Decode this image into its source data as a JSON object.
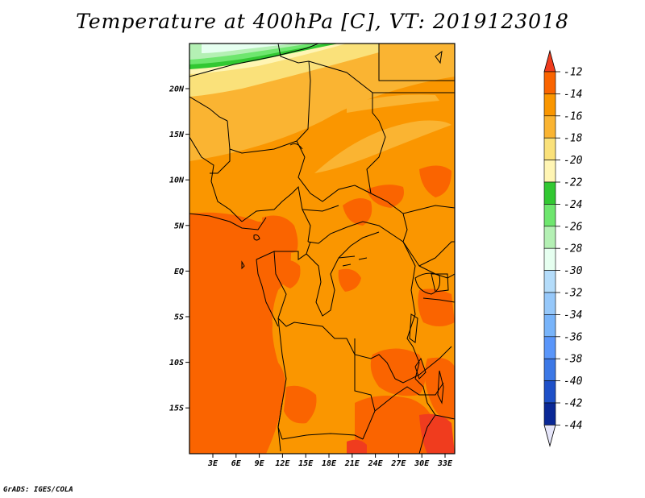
{
  "title": "Temperature at 400hPa [C], VT: 2019123018",
  "credit": "GrADS: IGES/COLA",
  "map": {
    "lat_labels": [
      "20N",
      "15N",
      "10N",
      "5N",
      "EQ",
      "5S",
      "10S",
      "15S"
    ],
    "lon_labels": [
      "3E",
      "6E",
      "9E",
      "12E",
      "15E",
      "18E",
      "21E",
      "24E",
      "27E",
      "30E",
      "33E"
    ]
  },
  "colorbar": {
    "labels": [
      "-12",
      "-14",
      "-16",
      "-18",
      "-20",
      "-22",
      "-24",
      "-26",
      "-28",
      "-30",
      "-32",
      "-34",
      "-36",
      "-38",
      "-40",
      "-42",
      "-44"
    ],
    "colors": {
      "above_-12": "#f03c1e",
      "-14_to_-12": "#fa6400",
      "-16_to_-14": "#fa9600",
      "-18_to_-16": "#fab432",
      "-20_to_-18": "#fae17a",
      "-22_to_-20": "#fff5b4",
      "-24_to_-22": "#32c832",
      "-26_to_-24": "#6ee66e",
      "-28_to_-26": "#b4f0b4",
      "-30_to_-28": "#e6fff0",
      "-32_to_-30": "#b4dcfa",
      "-34_to_-32": "#96c8fa",
      "-36_to_-34": "#78b4fa",
      "-38_to_-36": "#5a96fa",
      "-40_to_-38": "#3c78e6",
      "-42_to_-40": "#1e50c8",
      "-44_to_-42": "#0a2896",
      "below_-44": "#e6e6fa"
    }
  }
}
